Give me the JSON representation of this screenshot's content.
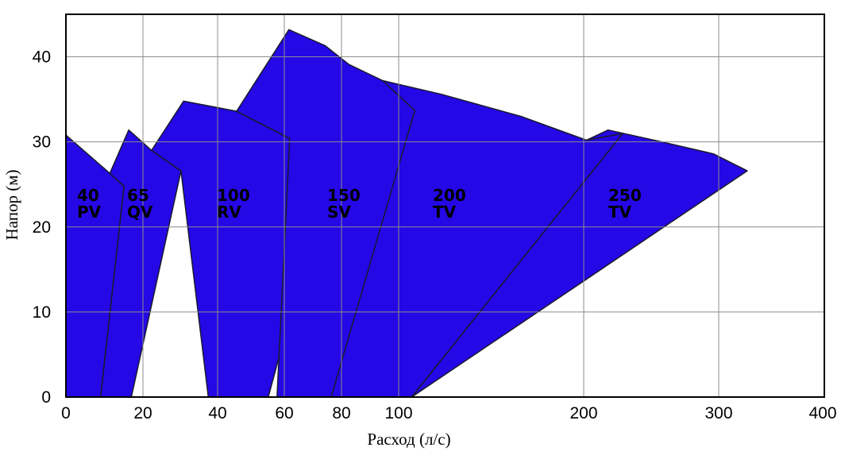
{
  "chart_data": {
    "type": "area",
    "xlabel": "Расход (л/с)",
    "ylabel": "Напор (м)",
    "x_ticks": [
      "0",
      "20",
      "40",
      "60",
      "80",
      "100",
      "200",
      "300",
      "400"
    ],
    "y_ticks": [
      "0",
      "10",
      "20",
      "30",
      "40"
    ],
    "ylim": [
      0,
      45
    ],
    "grid": true,
    "fill_color": "#2408e6",
    "series": [
      {
        "label_lines": [
          "40",
          "PV"
        ],
        "boundary": [
          [
            0,
            30.8
          ],
          [
            11.4,
            26.3
          ],
          [
            15.1,
            24.8
          ],
          [
            9.0,
            0
          ],
          [
            0,
            0
          ]
        ]
      },
      {
        "label_lines": [
          "65",
          "QV"
        ],
        "boundary": [
          [
            11.4,
            26.3
          ],
          [
            16.3,
            31.4
          ],
          [
            22.3,
            29.0
          ],
          [
            30.2,
            26.6
          ],
          [
            17.0,
            0
          ],
          [
            9.0,
            0
          ],
          [
            15.1,
            24.8
          ]
        ]
      },
      {
        "label_lines": [
          "100",
          "RV"
        ],
        "boundary": [
          [
            22.3,
            29.0
          ],
          [
            30.9,
            34.8
          ],
          [
            45.7,
            33.6
          ],
          [
            61.9,
            30.4
          ],
          [
            76.4,
            27.4
          ],
          [
            55.2,
            0
          ],
          [
            37.5,
            0
          ],
          [
            30.2,
            26.6
          ]
        ]
      },
      {
        "label_lines": [
          "150",
          "SV"
        ],
        "boundary": [
          [
            45.7,
            33.6
          ],
          [
            61.6,
            43.2
          ],
          [
            74.3,
            41.3
          ],
          [
            82.6,
            39.1
          ],
          [
            94.4,
            37.2
          ],
          [
            108.7,
            33.7
          ],
          [
            77.0,
            0
          ],
          [
            57.8,
            0
          ],
          [
            61.9,
            30.4
          ]
        ]
      },
      {
        "label_lines": [
          "200",
          "TV"
        ],
        "boundary": [
          [
            94.4,
            37.2
          ],
          [
            123.0,
            35.6
          ],
          [
            166.0,
            33.0
          ],
          [
            202.0,
            30.2
          ],
          [
            229.0,
            31.0
          ],
          [
            107.0,
            0
          ],
          [
            76.4,
            0
          ],
          [
            108.7,
            33.7
          ]
        ]
      },
      {
        "label_lines": [
          "250",
          "TV"
        ],
        "boundary": [
          [
            202.0,
            30.2
          ],
          [
            218.0,
            31.4
          ],
          [
            258.0,
            30.0
          ],
          [
            296.0,
            28.6
          ],
          [
            327.0,
            26.6
          ],
          [
            107.0,
            0
          ],
          [
            229.0,
            31.0
          ]
        ]
      }
    ]
  }
}
